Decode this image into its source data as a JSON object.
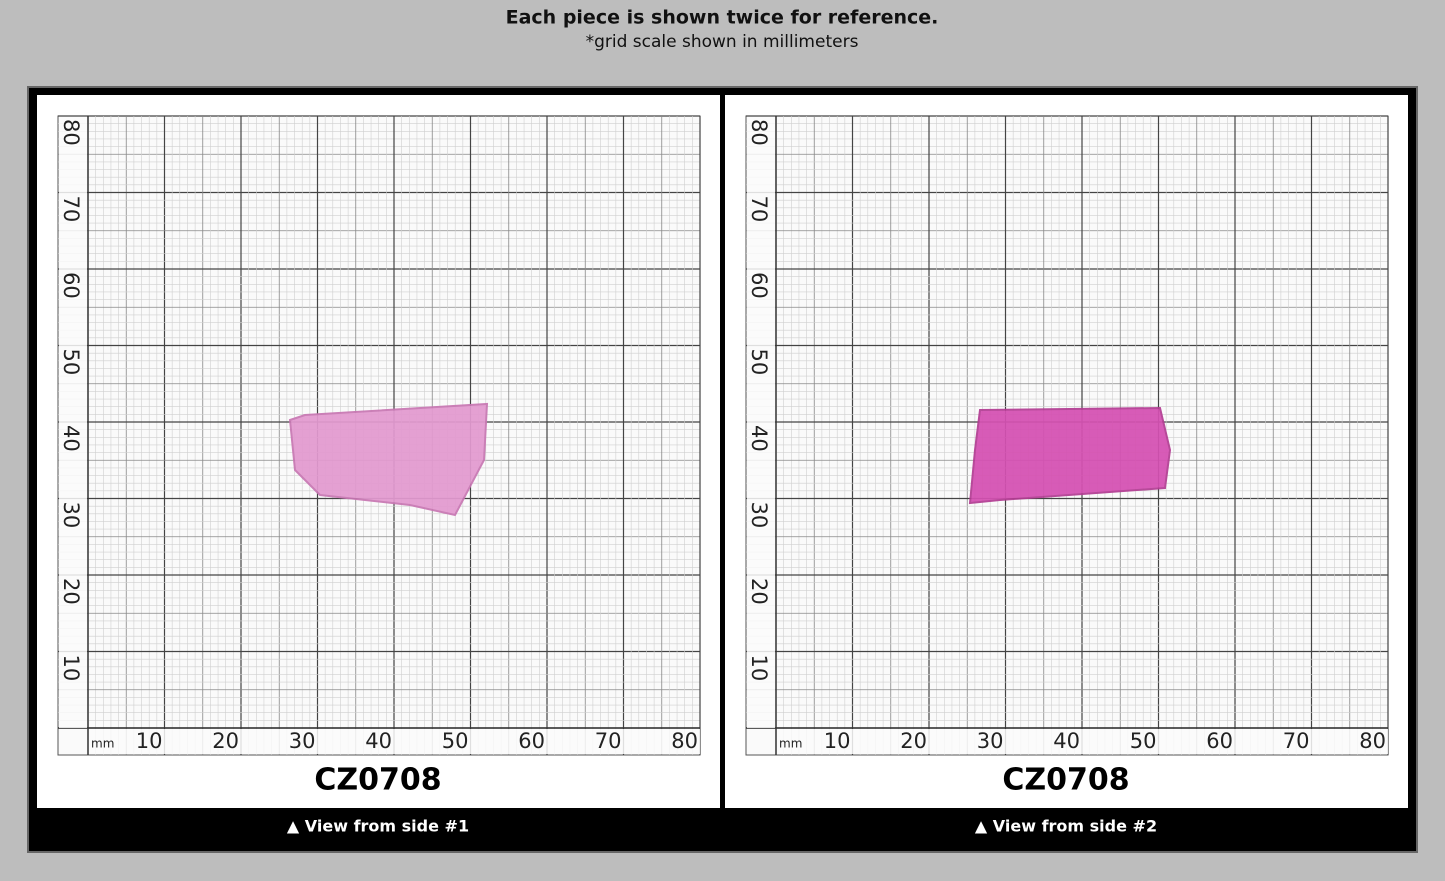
{
  "header": {
    "title": "Each piece is shown twice for reference.",
    "subtitle": "*grid scale shown in millimeters"
  },
  "grid": {
    "unit": "mm",
    "x_labels": [
      10,
      20,
      30,
      40,
      50,
      60,
      70,
      80
    ],
    "y_labels": [
      80,
      70,
      60,
      50,
      40,
      30,
      20,
      10
    ]
  },
  "panels": [
    {
      "code": "CZ0708",
      "caption": "▲ View from side #1"
    },
    {
      "code": "CZ0708",
      "caption": "▲ View from side #2"
    }
  ]
}
